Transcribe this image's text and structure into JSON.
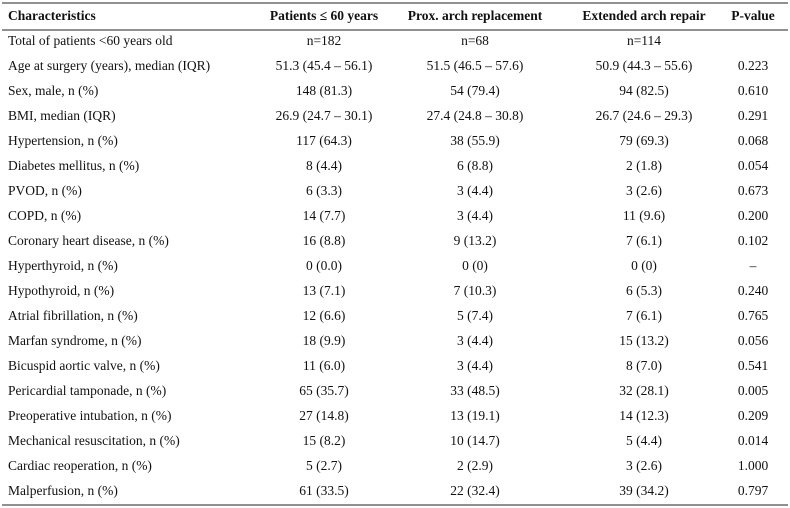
{
  "table": {
    "header": [
      "Characteristics",
      "Patients ≤ 60 years",
      "Prox. arch replacement",
      "Extended arch repair",
      "P-value"
    ],
    "rows": [
      [
        "Total of patients <60 years old",
        "n=182",
        "n=68",
        "n=114"
      ],
      [
        "Age at surgery (years), median (IQR)",
        "51.3 (45.4 – 56.1)",
        "51.5 (46.5 – 57.6)",
        "50.9 (44.3 – 55.6)",
        "0.223"
      ],
      [
        "Sex, male, n (%)",
        "148 (81.3)",
        "54 (79.4)",
        "94 (82.5)",
        "0.610"
      ],
      [
        "BMI, median (IQR)",
        "26.9 (24.7 – 30.1)",
        "27.4 (24.8 – 30.8)",
        "26.7 (24.6 – 29.3)",
        "0.291"
      ],
      [
        "Hypertension, n (%)",
        "117 (64.3)",
        "38 (55.9)",
        "79 (69.3)",
        "0.068"
      ],
      [
        "Diabetes mellitus, n (%)",
        "8 (4.4)",
        "6 (8.8)",
        "2 (1.8)",
        "0.054"
      ],
      [
        "PVOD, n (%)",
        "6 (3.3)",
        "3 (4.4)",
        "3 (2.6)",
        "0.673"
      ],
      [
        "COPD, n (%)",
        "14 (7.7)",
        "3 (4.4)",
        "11 (9.6)",
        "0.200"
      ],
      [
        "Coronary heart disease, n (%)",
        "16 (8.8)",
        "9 (13.2)",
        "7 (6.1)",
        "0.102"
      ],
      [
        "Hyperthyroid, n (%)",
        "0 (0.0)",
        "0 (0)",
        "0 (0)",
        "–"
      ],
      [
        "Hypothyroid, n (%)",
        "13 (7.1)",
        "7 (10.3)",
        "6 (5.3)",
        "0.240"
      ],
      [
        "Atrial fibrillation, n (%)",
        "12 (6.6)",
        "5 (7.4)",
        "7 (6.1)",
        "0.765"
      ],
      [
        "Marfan syndrome, n (%)",
        "18 (9.9)",
        "3 (4.4)",
        "15 (13.2)",
        "0.056"
      ],
      [
        "Bicuspid aortic valve, n (%)",
        "11 (6.0)",
        "3 (4.4)",
        "8 (7.0)",
        "0.541"
      ],
      [
        "Pericardial tamponade, n (%)",
        "65 (35.7)",
        "33 (48.5)",
        "32 (28.1)",
        "0.005"
      ],
      [
        "Preoperative intubation, n (%)",
        "27 (14.8)",
        "13 (19.1)",
        "14 (12.3)",
        "0.209"
      ],
      [
        "Mechanical resuscitation, n (%)",
        "15 (8.2)",
        "10 (14.7)",
        "5 (4.4)",
        "0.014"
      ],
      [
        "Cardiac reoperation, n (%)",
        "5 (2.7)",
        "2 (2.9)",
        "3 (2.6)",
        "1.000"
      ],
      [
        "Malperfusion, n (%)",
        "61 (33.5)",
        "22 (32.4)",
        "39 (34.2)",
        "0.797"
      ]
    ]
  }
}
